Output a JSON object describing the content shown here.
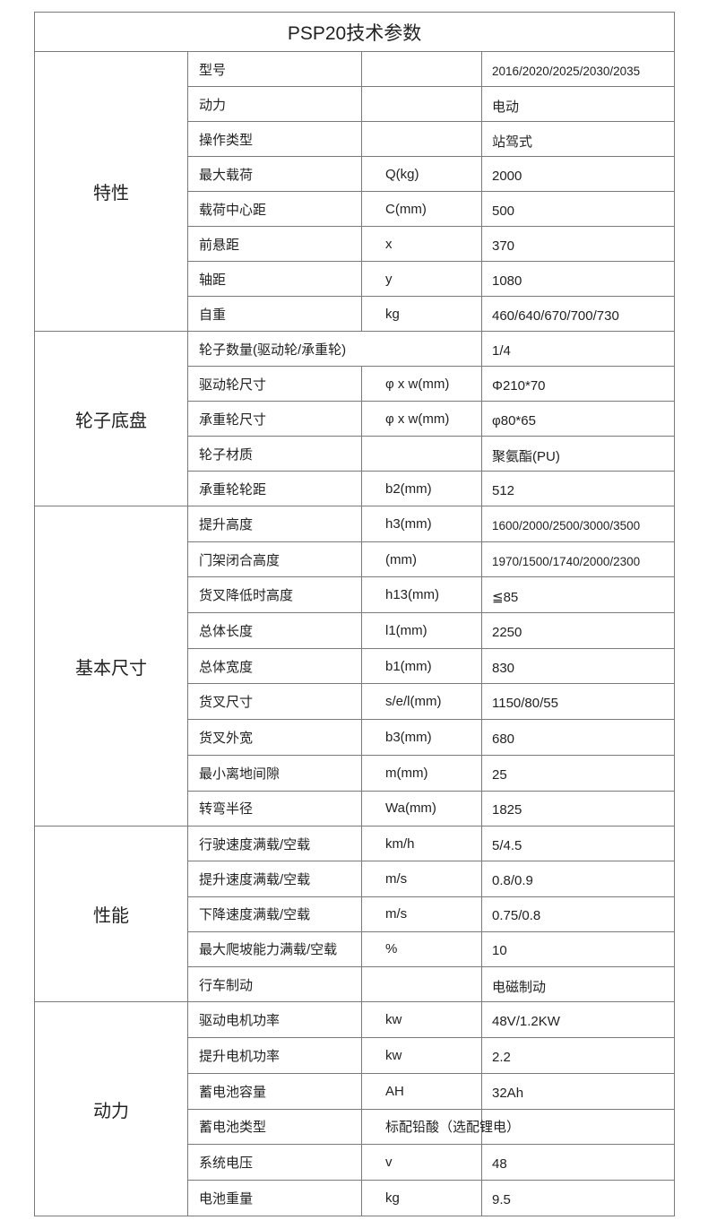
{
  "title": "PSP20技术参数",
  "groups": [
    {
      "name": "特性",
      "rows": [
        {
          "param": "型号",
          "unit": "",
          "value": "2016/2020/2025/2030/2035",
          "small": true
        },
        {
          "param": "动力",
          "unit": "",
          "value": "电动"
        },
        {
          "param": "操作类型",
          "unit": "",
          "value": "站驾式"
        },
        {
          "param": "最大载荷",
          "unit": "Q(kg)",
          "value": "2000"
        },
        {
          "param": "载荷中心距",
          "unit": "C(mm)",
          "value": "500"
        },
        {
          "param": "前悬距",
          "unit": "x",
          "value": "370"
        },
        {
          "param": "轴距",
          "unit": "y",
          "value": "1080"
        },
        {
          "param": "自重",
          "unit": "kg",
          "value": "460/640/670/700/730"
        }
      ]
    },
    {
      "name": "轮子底盘",
      "rows": [
        {
          "param": "轮子数量(驱动轮/承重轮)",
          "unit": null,
          "value": "1/4"
        },
        {
          "param": "驱动轮尺寸",
          "unit": "φ x w(mm)",
          "value": "Φ210*70"
        },
        {
          "param": "承重轮尺寸",
          "unit": "φ x w(mm)",
          "value": "φ80*65"
        },
        {
          "param": "轮子材质",
          "unit": "",
          "value": "聚氨酯(PU)"
        },
        {
          "param": "承重轮轮距",
          "unit": "b2(mm)",
          "value": "512"
        }
      ]
    },
    {
      "name": "基本尺寸",
      "rows": [
        {
          "param": "提升高度",
          "unit": "h3(mm)",
          "value": "1600/2000/2500/3000/3500",
          "small": true
        },
        {
          "param": "门架闭合高度",
          "unit": "(mm)",
          "value": "1970/1500/1740/2000/2300",
          "small": true
        },
        {
          "param": "货叉降低时高度",
          "unit": "h13(mm)",
          "value": "≦85"
        },
        {
          "param": "总体长度",
          "unit": "l1(mm)",
          "value": "2250"
        },
        {
          "param": "总体宽度",
          "unit": "b1(mm)",
          "value": "830"
        },
        {
          "param": "货叉尺寸",
          "unit": "s/e/l(mm)",
          "value": "1150/80/55"
        },
        {
          "param": "货叉外宽",
          "unit": "b3(mm)",
          "value": "680"
        },
        {
          "param": "最小离地间隙",
          "unit": "m(mm)",
          "value": "25"
        },
        {
          "param": "转弯半径",
          "unit": "Wa(mm)",
          "value": "1825"
        }
      ]
    },
    {
      "name": "性能",
      "rows": [
        {
          "param": "行驶速度满载/空载",
          "unit": "km/h",
          "value": "5/4.5"
        },
        {
          "param": "提升速度满载/空载",
          "unit": "m/s",
          "value": "0.8/0.9"
        },
        {
          "param": "下降速度满载/空载",
          "unit": "m/s",
          "value": "0.75/0.8"
        },
        {
          "param": "最大爬坡能力满载/空载",
          "unit": "%",
          "value": "10"
        },
        {
          "param": "行车制动",
          "unit": "",
          "value": "电磁制动"
        }
      ]
    },
    {
      "name": "动力",
      "rows": [
        {
          "param": "驱动电机功率",
          "unit": "kw",
          "value": "48V/1.2KW"
        },
        {
          "param": "提升电机功率",
          "unit": "kw",
          "value": "2.2"
        },
        {
          "param": "蓄电池容量",
          "unit": "AH",
          "value": "32Ah"
        },
        {
          "param": "蓄电池类型",
          "unit": "标配铅酸（选配锂电）",
          "value": ""
        },
        {
          "param": "系统电压",
          "unit": "v",
          "value": "48"
        },
        {
          "param": "电池重量",
          "unit": "kg",
          "value": "9.5"
        }
      ]
    }
  ]
}
